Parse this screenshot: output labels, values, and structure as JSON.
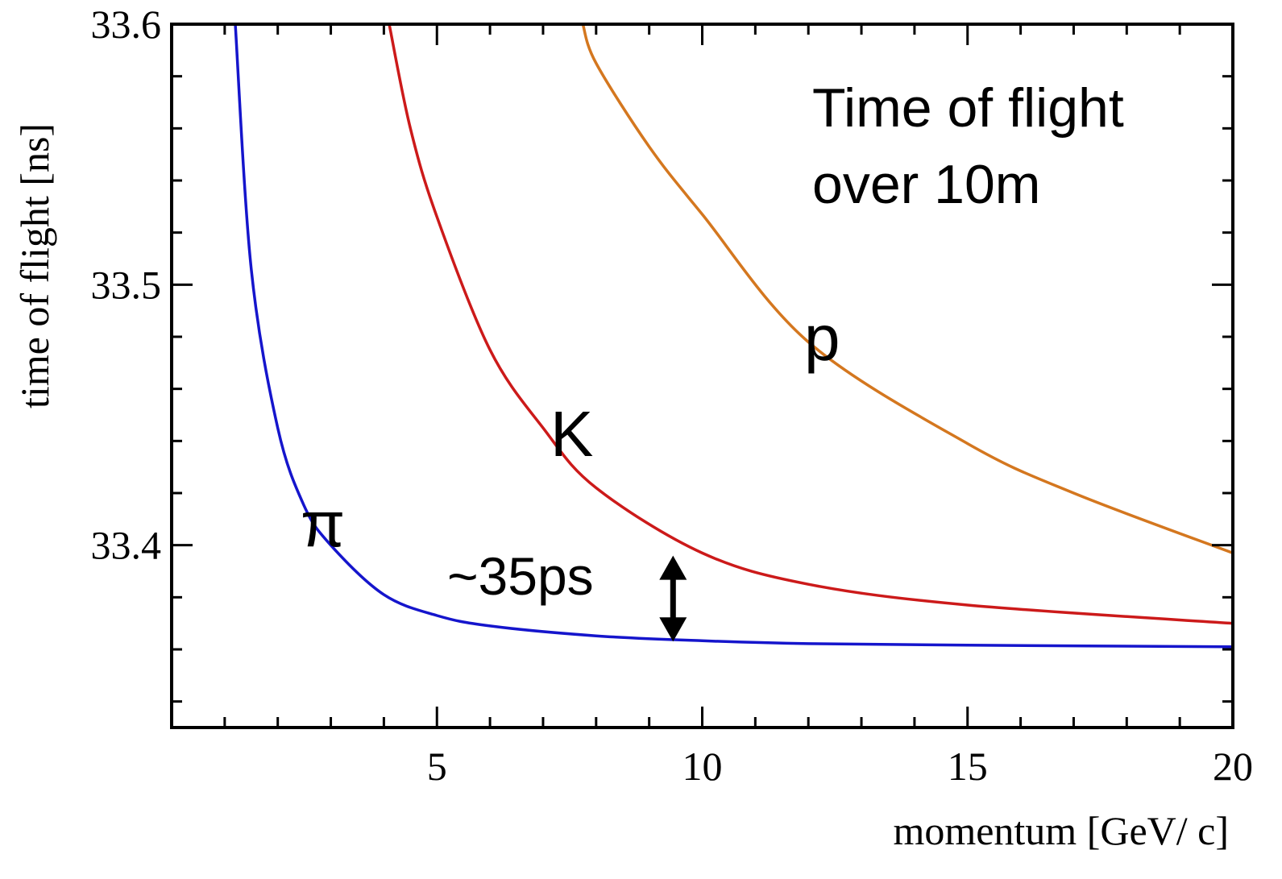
{
  "chart_data": {
    "type": "line",
    "title": "",
    "xlabel": "momentum [GeV/ c]",
    "ylabel": "time of flight [ns]",
    "xlim": [
      0,
      20
    ],
    "ylim": [
      33.33,
      33.6
    ],
    "x_ticks": [
      5,
      10,
      15,
      20
    ],
    "x_tick_labels": [
      "5",
      "10",
      "15",
      "20"
    ],
    "y_ticks": [
      33.4,
      33.5,
      33.6
    ],
    "y_tick_labels": [
      "33.4",
      "33.5",
      "33.6"
    ],
    "grid": false,
    "legend": "none",
    "series": [
      {
        "name": "π",
        "color": "#1515cc",
        "x": [
          1.2,
          1.5,
          2,
          2.5,
          3,
          4,
          5,
          6,
          8,
          10,
          12,
          15,
          20
        ],
        "y": [
          33.6,
          33.506,
          33.445,
          33.415,
          33.4,
          33.381,
          33.373,
          33.369,
          33.3652,
          33.3633,
          33.3622,
          33.3616,
          33.361
        ]
      },
      {
        "name": "K",
        "color": "#cc1a1a",
        "x": [
          4.1,
          4.5,
          5,
          6,
          7,
          8,
          10,
          12,
          15,
          20
        ],
        "y": [
          33.6,
          33.56,
          33.526,
          33.475,
          33.445,
          33.422,
          33.397,
          33.385,
          33.377,
          33.37
        ]
      },
      {
        "name": "p",
        "color": "#d4771f",
        "x": [
          7.75,
          8,
          9,
          10,
          12,
          15,
          17,
          20
        ],
        "y": [
          33.6,
          33.585,
          33.553,
          33.527,
          33.478,
          33.439,
          33.42,
          33.397
        ]
      }
    ],
    "annotations": {
      "title_line1": "Time of flight",
      "title_line2": "over 10m",
      "label_pi": "π",
      "label_k": "K",
      "label_p": "p",
      "separation": "~35ps",
      "separation_arrow": {
        "x": 9.45,
        "y_top": 33.396,
        "y_bottom": 33.363
      }
    }
  }
}
